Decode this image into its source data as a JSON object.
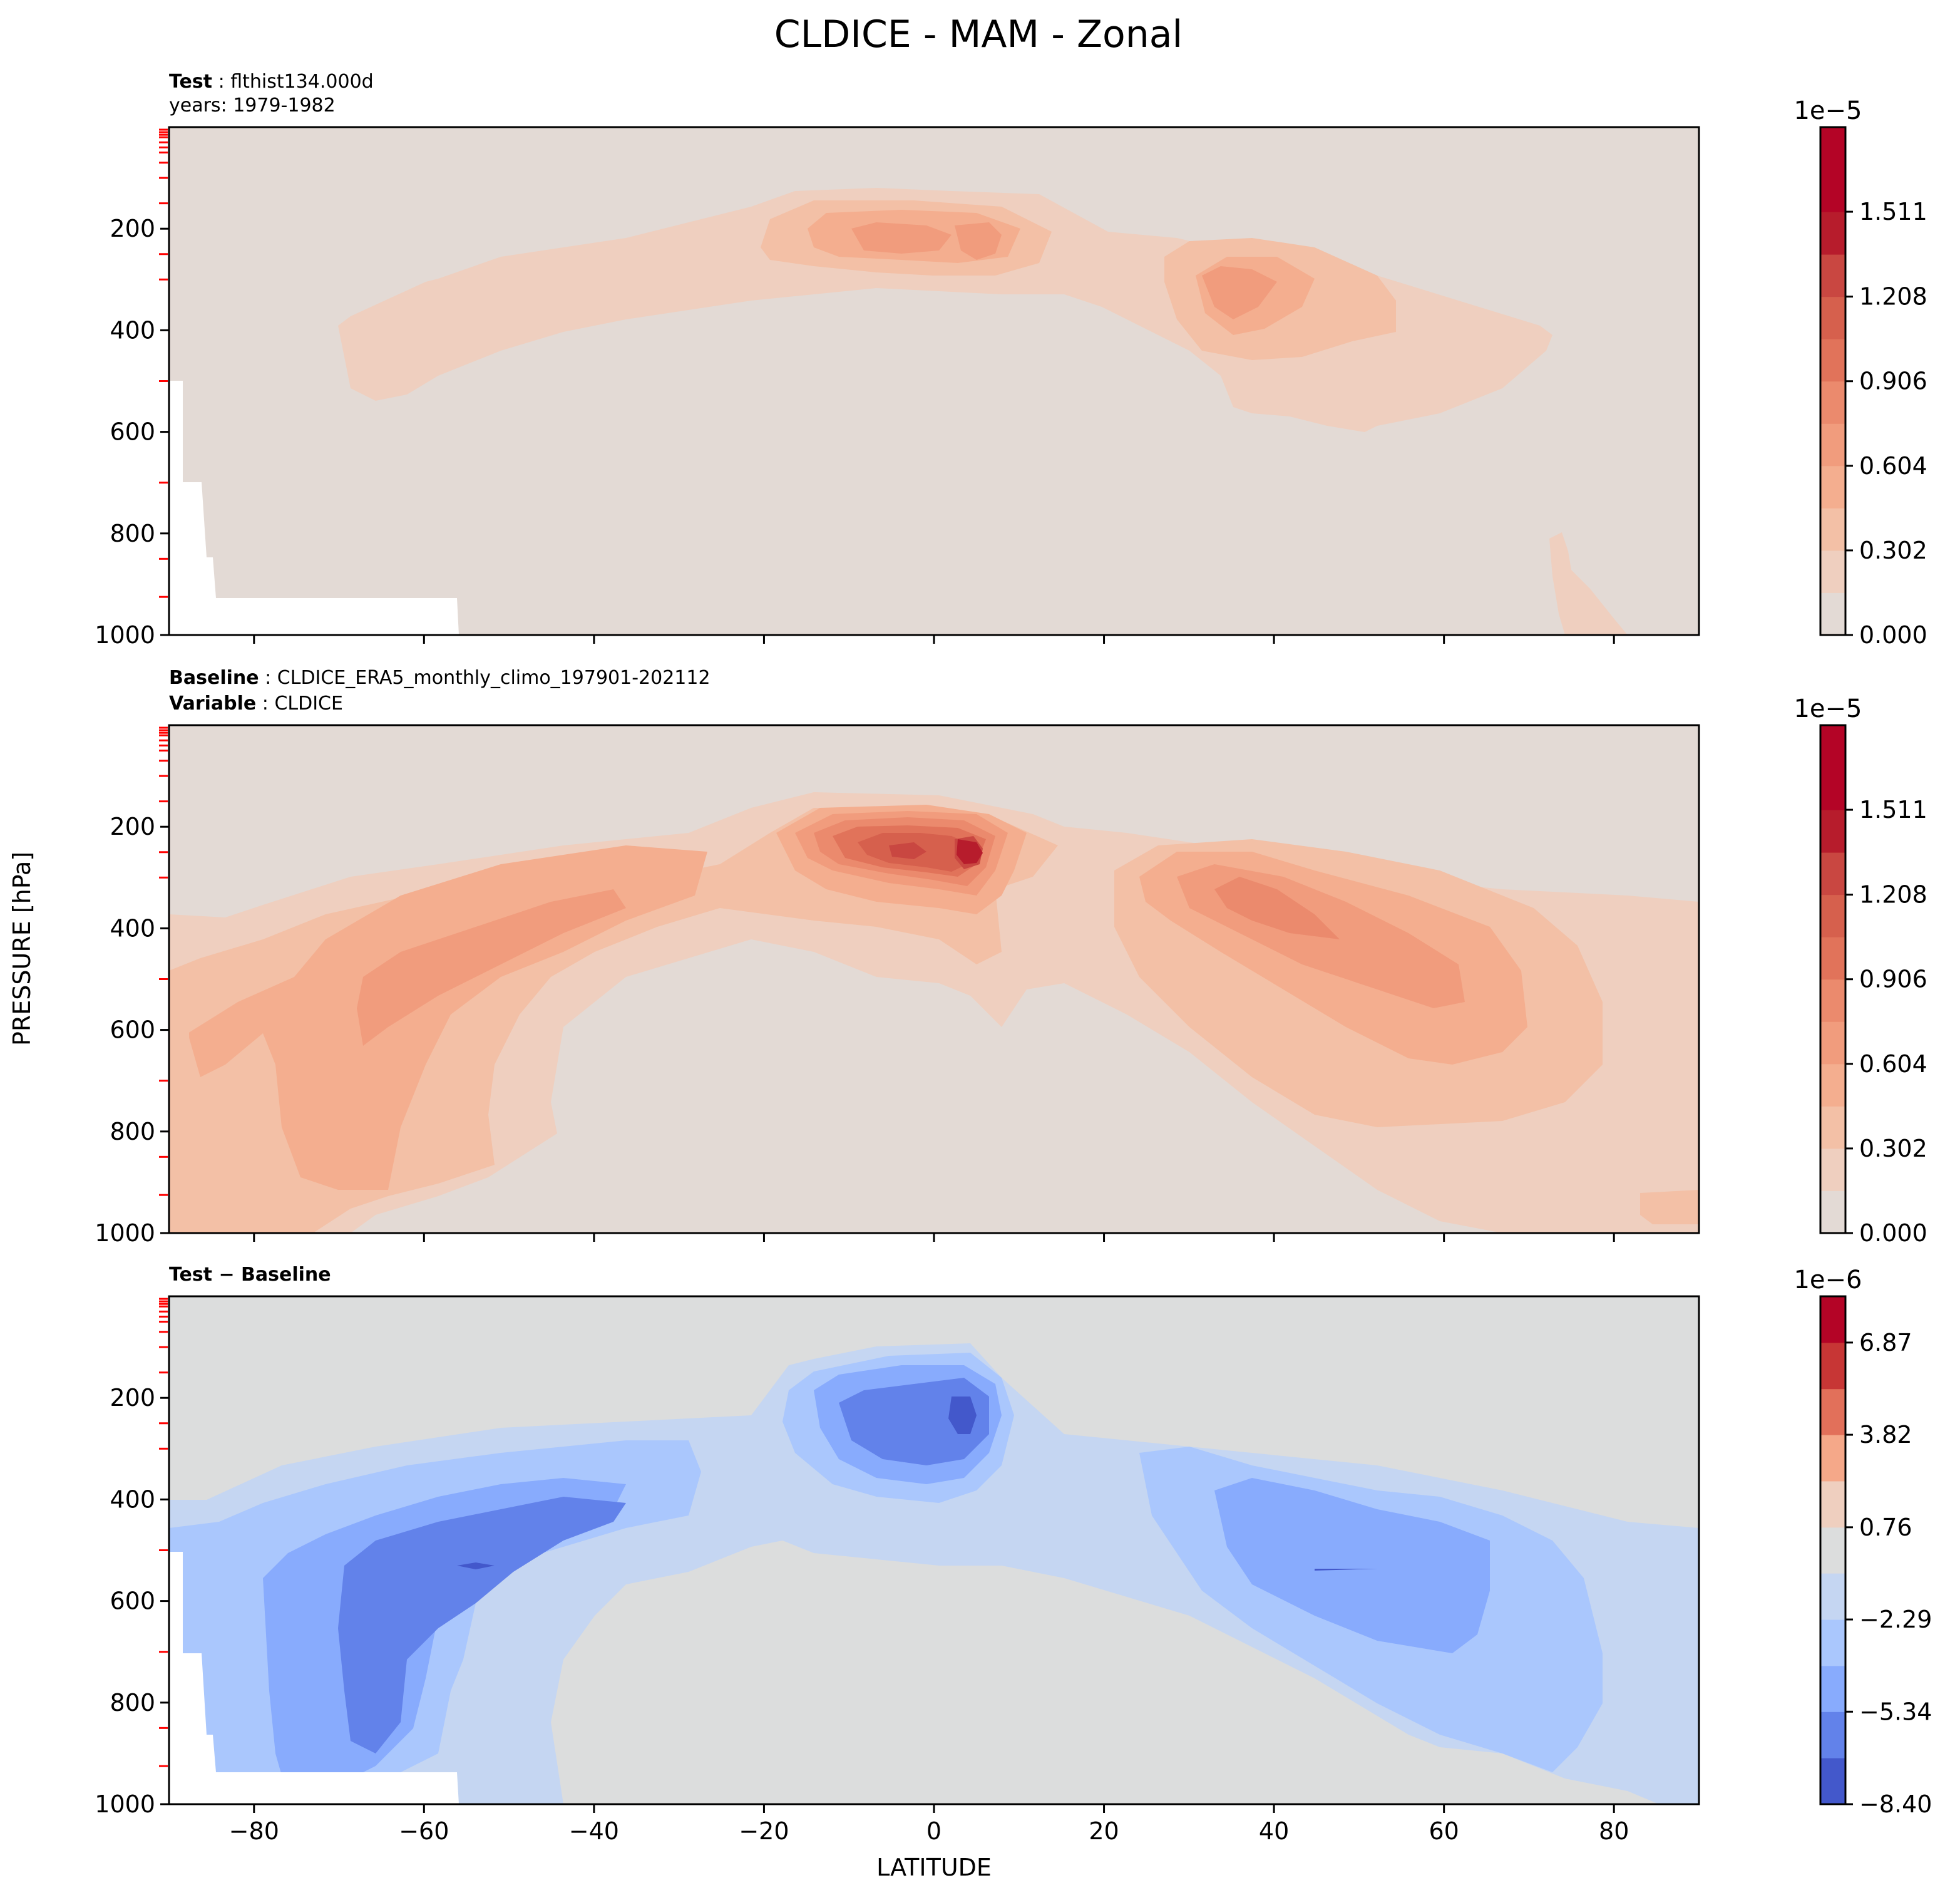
{
  "chart_data": {
    "type": "contour",
    "title": "CLDICE - MAM - Zonal",
    "xlabel": "LATITUDE",
    "ylabel": "PRESSURE [hPa]",
    "xlim": [
      -90,
      90
    ],
    "ylim": [
      1000,
      0
    ],
    "y_scale": "linear",
    "x_ticks": [
      -80,
      -60,
      -40,
      -20,
      0,
      20,
      40,
      60,
      80
    ],
    "x_tick_labels": [
      "−80",
      "−60",
      "−40",
      "−20",
      "0",
      "20",
      "40",
      "60",
      "80"
    ],
    "y_ticks": [
      200,
      400,
      600,
      800,
      1000
    ],
    "y_tick_labels": [
      "200",
      "400",
      "600",
      "800",
      "1000"
    ],
    "model_level_markers_hPa": [
      5,
      10,
      15,
      20,
      30,
      40,
      50,
      70,
      100,
      150,
      250,
      300,
      500,
      700,
      850,
      925
    ],
    "panels": [
      {
        "id": "test",
        "header": [
          {
            "bold": "Test",
            "text": "flthist134.000d"
          },
          {
            "bold": "",
            "text": "years: 1979-1982"
          }
        ],
        "colormap": "reds",
        "colorbar": {
          "offset": "1e−5",
          "tick_labels": [
            "0.000",
            "0.302",
            "0.604",
            "0.906",
            "1.208",
            "1.511"
          ],
          "tick_values": [
            0.0,
            0.302,
            0.604,
            0.906,
            1.208,
            1.511
          ],
          "levels": [
            0.0,
            0.151,
            0.302,
            0.453,
            0.604,
            0.755,
            0.906,
            1.057,
            1.208,
            1.359,
            1.511,
            1.662,
            1.813
          ],
          "colors": [
            "#e3dad5",
            "#efcfbf",
            "#f3c0a6",
            "#f4ae8f",
            "#f19c7d",
            "#eb8a6d",
            "#e1735a",
            "#d6604d",
            "#c94741",
            "#b71c2c",
            "#b40426",
            "#b40426"
          ]
        },
        "features": [
          {
            "name": "subtropical-upper-band",
            "lat": [
              -70,
              72
            ],
            "p": [
              130,
              540
            ],
            "level": 1
          },
          {
            "name": "tropical-upper-max",
            "lat": [
              -7,
              8
            ],
            "p": [
              180,
              260
            ],
            "level": 4,
            "peak": 0.75
          },
          {
            "name": "nh-midlat-max",
            "lat": [
              30,
              42
            ],
            "p": [
              230,
              420
            ],
            "level": 4,
            "peak": 0.7
          },
          {
            "name": "arctic-surface-patch",
            "lat": [
              73,
              82
            ],
            "p": [
              780,
              1000
            ],
            "level": 1
          }
        ],
        "missing_region": "Antarctic surface below ~500 hPa near 90°S to 55°S"
      },
      {
        "id": "baseline",
        "header": [
          {
            "bold": "Baseline",
            "text": "CLDICE_ERA5_monthly_climo_197901-202112"
          },
          {
            "bold": "Variable",
            "text": "CLDICE"
          }
        ],
        "colormap": "reds",
        "colorbar": {
          "offset": "1e−5",
          "tick_labels": [
            "0.000",
            "0.302",
            "0.604",
            "0.906",
            "1.208",
            "1.511"
          ],
          "tick_values": [
            0.0,
            0.302,
            0.604,
            0.906,
            1.208,
            1.511
          ],
          "levels": [
            0.0,
            0.151,
            0.302,
            0.453,
            0.604,
            0.755,
            0.906,
            1.057,
            1.208,
            1.359,
            1.511,
            1.662,
            1.813
          ],
          "colors": [
            "#e3dad5",
            "#efcfbf",
            "#f3c0a6",
            "#f4ae8f",
            "#f19c7d",
            "#eb8a6d",
            "#e1735a",
            "#d6604d",
            "#c94741",
            "#b71c2c",
            "#b40426",
            "#b40426"
          ]
        },
        "features": [
          {
            "name": "sh-midlat-band",
            "lat": [
              -85,
              -25
            ],
            "p": [
              300,
              950
            ],
            "level": 4,
            "peak": 0.8
          },
          {
            "name": "tropical-upper-max",
            "lat": [
              -12,
              12
            ],
            "p": [
              150,
              400
            ],
            "level": 10,
            "peak": 1.55
          },
          {
            "name": "nh-midlat-band",
            "lat": [
              25,
              70
            ],
            "p": [
              280,
              700
            ],
            "level": 5,
            "peak": 0.85
          },
          {
            "name": "polar-lower-layers",
            "lat": [
              -90,
              90
            ],
            "p": [
              450,
              1000
            ],
            "level": 2
          }
        ]
      },
      {
        "id": "difference",
        "header": [
          {
            "bold": "Test − Baseline",
            "text": ""
          }
        ],
        "colormap": "coolwarm",
        "colorbar": {
          "offset": "1e−6",
          "tick_labels": [
            "−8.40",
            "−5.34",
            "−2.29",
            "0.76",
            "3.82",
            "6.87"
          ],
          "tick_values": [
            -8.4,
            -5.34,
            -2.29,
            0.76,
            3.82,
            6.87
          ],
          "levels": [
            -8.4,
            -6.87,
            -5.34,
            -3.82,
            -2.29,
            -0.76,
            0.76,
            2.29,
            3.82,
            5.34,
            6.87,
            8.4
          ],
          "colors": [
            "#4358cb",
            "#6282ea",
            "#88abfd",
            "#aac7fd",
            "#c5d6f2",
            "#dcdddd",
            "#efcfbf",
            "#f5a889",
            "#e2705a",
            "#c73635",
            "#b40426"
          ]
        },
        "features": [
          {
            "name": "sh-midlat-negative",
            "lat": [
              -85,
              -25
            ],
            "p": [
              300,
              950
            ],
            "level": -3,
            "peak": -7.0
          },
          {
            "name": "tropical-upper-negative",
            "lat": [
              -15,
              10
            ],
            "p": [
              130,
              470
            ],
            "level": -3,
            "peak": -7.0
          },
          {
            "name": "nh-midlat-negative",
            "lat": [
              25,
              70
            ],
            "p": [
              340,
              950
            ],
            "level": -2,
            "peak": -5.5
          }
        ]
      }
    ]
  }
}
